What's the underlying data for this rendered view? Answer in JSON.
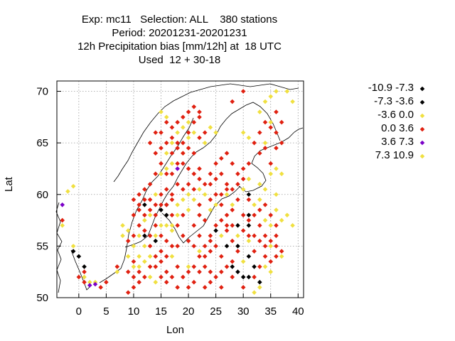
{
  "title_lines": [
    "Exp: mc11   Selection: ALL    380 stations",
    "Period: 20201231-20201231",
    "12h Precipitation bias [mm/12h] at  18 UTC",
    "Used  12 + 30-18"
  ],
  "chart_data": {
    "type": "scatter",
    "xlabel": "Lon",
    "ylabel": "Lat",
    "xlim": [
      -4,
      41
    ],
    "ylim": [
      50,
      71
    ],
    "xticks": [
      0,
      5,
      10,
      15,
      20,
      25,
      30,
      35,
      40
    ],
    "yticks": [
      50,
      55,
      60,
      65,
      70
    ],
    "grid": true,
    "legend_position": "right",
    "legend": [
      {
        "label": "-10.9 -7.3",
        "color": "#000000"
      },
      {
        "label": "-7.3 -3.6",
        "color": "#000000"
      },
      {
        "label": "-3.6 0.0",
        "color": "#f0e040"
      },
      {
        "label": "0.0 3.6",
        "color": "#e02010"
      },
      {
        "label": "3.6 7.3",
        "color": "#7b00c8"
      },
      {
        "label": "7.3 10.9",
        "color": "#f0e040"
      }
    ],
    "series": [
      {
        "color": "#000000",
        "points": [
          [
            12,
            59
          ],
          [
            12,
            56
          ],
          [
            14,
            55.5
          ],
          [
            16,
            58
          ],
          [
            16,
            59
          ],
          [
            15,
            58.5
          ],
          [
            31,
            60
          ],
          [
            31,
            58
          ],
          [
            29,
            57
          ],
          [
            27,
            55
          ],
          [
            29,
            55
          ],
          [
            31,
            54
          ],
          [
            28,
            53
          ],
          [
            29,
            52.5
          ],
          [
            30,
            52
          ],
          [
            31,
            52
          ],
          [
            32,
            53
          ],
          [
            33,
            51.5
          ],
          [
            -1,
            54.5
          ],
          [
            0,
            54
          ],
          [
            1,
            53
          ],
          [
            25,
            56.5
          ],
          [
            31,
            57
          ]
        ]
      },
      {
        "color": "#f0e040",
        "points": [
          [
            -2,
            60.3
          ],
          [
            -1,
            60.8
          ],
          [
            -3,
            57
          ],
          [
            -1,
            55
          ],
          [
            1,
            52
          ],
          [
            2,
            51.5
          ],
          [
            3,
            51.5
          ],
          [
            7,
            52.5
          ],
          [
            8,
            56
          ],
          [
            8,
            57
          ],
          [
            9,
            56.5
          ],
          [
            10,
            55
          ],
          [
            11,
            56
          ],
          [
            12,
            57.5
          ],
          [
            13,
            58
          ],
          [
            15,
            57
          ],
          [
            16,
            57
          ],
          [
            17,
            56.5
          ],
          [
            17,
            57
          ],
          [
            18,
            58
          ],
          [
            18,
            59
          ],
          [
            19,
            59.5
          ],
          [
            20,
            58.5
          ],
          [
            14,
            60
          ],
          [
            15,
            62
          ],
          [
            16,
            62.5
          ],
          [
            17,
            63
          ],
          [
            16,
            64
          ],
          [
            17,
            65
          ],
          [
            18,
            66
          ],
          [
            19,
            66.5
          ],
          [
            20,
            67
          ],
          [
            21,
            66
          ],
          [
            20,
            65.5
          ],
          [
            19,
            64
          ],
          [
            15,
            68
          ],
          [
            16,
            67.5
          ],
          [
            23,
            65
          ],
          [
            24,
            66.5
          ],
          [
            25,
            66
          ],
          [
            30,
            66
          ],
          [
            31,
            65.5
          ],
          [
            33,
            68
          ],
          [
            34,
            69
          ],
          [
            35,
            69.5
          ],
          [
            36,
            70
          ],
          [
            38,
            70
          ],
          [
            39,
            69
          ],
          [
            35,
            67
          ],
          [
            34,
            65
          ],
          [
            35,
            62
          ],
          [
            36,
            62.5
          ],
          [
            37,
            62
          ],
          [
            36,
            60
          ],
          [
            36,
            58.5
          ],
          [
            38,
            58
          ],
          [
            39,
            57
          ],
          [
            37,
            57.5
          ],
          [
            35,
            57
          ],
          [
            34,
            57.5
          ],
          [
            32,
            59
          ],
          [
            33,
            59.5
          ],
          [
            34,
            60.5
          ],
          [
            33,
            61
          ],
          [
            31,
            61.5
          ],
          [
            30,
            60.5
          ],
          [
            28,
            59
          ],
          [
            27,
            60
          ],
          [
            35,
            55
          ],
          [
            37,
            54
          ],
          [
            34,
            53
          ],
          [
            35,
            52.5
          ],
          [
            33,
            51
          ],
          [
            32,
            50.5
          ],
          [
            30,
            53.5
          ],
          [
            31,
            55.5
          ],
          [
            29,
            56
          ],
          [
            11,
            53
          ],
          [
            12,
            53.5
          ],
          [
            13,
            54
          ],
          [
            12,
            55
          ],
          [
            14,
            56
          ],
          [
            17,
            54
          ],
          [
            20,
            53
          ],
          [
            22,
            54.5
          ],
          [
            14,
            51.5
          ],
          [
            13,
            52
          ],
          [
            26,
            56
          ],
          [
            24,
            58.5
          ],
          [
            25,
            59
          ],
          [
            21,
            59.5
          ],
          [
            20,
            60
          ],
          [
            22,
            60.5
          ],
          [
            23,
            60
          ],
          [
            10,
            53
          ],
          [
            9,
            54
          ],
          [
            11,
            54
          ]
        ]
      },
      {
        "color": "#e02010",
        "points": [
          [
            -3,
            57.5
          ],
          [
            0,
            52
          ],
          [
            1,
            52.5
          ],
          [
            1,
            51.5
          ],
          [
            5,
            51.5
          ],
          [
            4,
            51
          ],
          [
            7,
            53
          ],
          [
            9,
            52.5
          ],
          [
            10,
            52
          ],
          [
            11,
            52.5
          ],
          [
            10,
            53.5
          ],
          [
            9,
            55.5
          ],
          [
            10,
            56
          ],
          [
            11,
            57
          ],
          [
            12,
            56.5
          ],
          [
            13,
            56
          ],
          [
            14,
            57
          ],
          [
            15,
            56
          ],
          [
            16,
            55.5
          ],
          [
            13,
            55
          ],
          [
            14,
            54
          ],
          [
            15,
            53.5
          ],
          [
            16,
            52.5
          ],
          [
            17,
            52
          ],
          [
            18,
            53
          ],
          [
            19,
            52
          ],
          [
            20,
            52.5
          ],
          [
            21,
            53
          ],
          [
            22,
            52.5
          ],
          [
            23,
            53
          ],
          [
            24,
            52.5
          ],
          [
            25,
            52
          ],
          [
            26,
            52.5
          ],
          [
            27,
            53
          ],
          [
            28,
            53.5
          ],
          [
            26,
            54
          ],
          [
            24,
            54.5
          ],
          [
            23,
            55
          ],
          [
            22,
            56
          ],
          [
            21,
            57
          ],
          [
            22,
            58
          ],
          [
            23,
            57.5
          ],
          [
            24,
            56
          ],
          [
            25,
            57
          ],
          [
            26,
            57.5
          ],
          [
            27,
            58
          ],
          [
            28,
            58.5
          ],
          [
            26,
            59
          ],
          [
            25,
            60
          ],
          [
            24,
            59.5
          ],
          [
            22,
            59
          ],
          [
            21,
            60.5
          ],
          [
            20,
            61
          ],
          [
            19,
            60.5
          ],
          [
            18,
            61
          ],
          [
            17,
            60
          ],
          [
            16,
            60.5
          ],
          [
            15,
            60
          ],
          [
            14,
            59
          ],
          [
            13,
            59.5
          ],
          [
            12,
            58
          ],
          [
            11,
            59
          ],
          [
            10,
            59.5
          ],
          [
            11,
            60
          ],
          [
            12,
            60.5
          ],
          [
            13,
            61
          ],
          [
            14,
            62
          ],
          [
            15,
            63
          ],
          [
            16,
            62
          ],
          [
            17,
            62
          ],
          [
            18,
            63
          ],
          [
            17,
            64
          ],
          [
            16,
            65
          ],
          [
            15,
            64.5
          ],
          [
            14,
            64
          ],
          [
            13,
            65
          ],
          [
            14,
            66
          ],
          [
            15,
            66
          ],
          [
            17,
            66.5
          ],
          [
            16,
            67
          ],
          [
            18,
            67
          ],
          [
            19,
            67.5
          ],
          [
            20,
            68
          ],
          [
            21,
            68.5
          ],
          [
            22,
            68
          ],
          [
            21,
            67
          ],
          [
            22,
            67.5
          ],
          [
            23,
            66
          ],
          [
            22,
            65.5
          ],
          [
            21,
            64
          ],
          [
            20,
            64.5
          ],
          [
            19,
            63
          ],
          [
            20,
            62.5
          ],
          [
            21,
            62
          ],
          [
            22,
            61.5
          ],
          [
            23,
            61
          ],
          [
            24,
            61
          ],
          [
            25,
            61.5
          ],
          [
            26,
            62
          ],
          [
            27,
            61
          ],
          [
            28,
            60.5
          ],
          [
            29,
            61
          ],
          [
            30,
            61.5
          ],
          [
            31,
            59.5
          ],
          [
            32,
            58
          ],
          [
            33,
            58.5
          ],
          [
            34,
            59
          ],
          [
            35,
            58
          ],
          [
            36,
            57
          ],
          [
            33,
            57
          ],
          [
            32,
            56
          ],
          [
            33,
            55.5
          ],
          [
            34,
            56
          ],
          [
            35,
            55.5
          ],
          [
            36,
            55
          ],
          [
            37,
            54.5
          ],
          [
            36,
            54
          ],
          [
            35,
            53.5
          ],
          [
            34,
            54
          ],
          [
            32,
            54.5
          ],
          [
            31,
            56
          ],
          [
            30,
            56.5
          ],
          [
            29,
            54.5
          ],
          [
            28,
            55.5
          ],
          [
            27,
            56.5
          ],
          [
            25,
            55
          ],
          [
            24,
            55.5
          ],
          [
            23,
            54
          ],
          [
            22,
            54
          ],
          [
            21,
            55
          ],
          [
            20,
            55.5
          ],
          [
            19,
            56
          ],
          [
            18,
            55
          ],
          [
            17,
            55
          ],
          [
            16,
            54
          ],
          [
            15,
            54.5
          ],
          [
            14,
            53
          ],
          [
            13,
            53
          ],
          [
            12,
            52
          ],
          [
            11,
            51.5
          ],
          [
            10,
            51
          ],
          [
            9,
            50.5
          ],
          [
            35,
            63
          ],
          [
            36,
            64.5
          ],
          [
            37,
            65
          ],
          [
            36,
            66
          ],
          [
            37,
            67
          ],
          [
            36,
            68
          ],
          [
            35,
            66.5
          ],
          [
            34,
            67
          ],
          [
            33,
            66
          ],
          [
            32,
            65
          ],
          [
            33,
            64
          ],
          [
            34,
            64.5
          ],
          [
            28,
            69
          ],
          [
            30,
            70
          ],
          [
            27,
            60.5
          ],
          [
            29,
            59.5
          ],
          [
            30,
            58
          ],
          [
            31,
            57.5
          ],
          [
            36,
            56
          ],
          [
            34,
            55
          ],
          [
            33,
            53
          ],
          [
            32,
            52
          ],
          [
            24,
            51.5
          ],
          [
            21,
            51.5
          ],
          [
            18,
            51
          ],
          [
            16,
            51.5
          ],
          [
            15,
            52
          ],
          [
            20,
            51
          ],
          [
            26,
            51
          ],
          [
            28,
            52
          ],
          [
            30,
            51
          ],
          [
            23,
            51
          ],
          [
            19,
            58
          ],
          [
            18,
            57
          ],
          [
            17,
            58
          ],
          [
            17,
            59.5
          ],
          [
            16,
            59
          ],
          [
            15,
            59
          ],
          [
            14,
            58
          ],
          [
            13,
            58.5
          ],
          [
            12,
            59.5
          ],
          [
            11,
            58.5
          ],
          [
            10,
            58
          ],
          [
            19,
            64
          ],
          [
            18,
            64.5
          ],
          [
            17,
            65.5
          ],
          [
            18,
            65
          ],
          [
            20,
            66
          ],
          [
            19,
            65
          ],
          [
            22,
            62.5
          ],
          [
            24,
            62
          ],
          [
            25,
            63
          ],
          [
            26,
            63.5
          ],
          [
            27,
            64
          ],
          [
            28,
            63
          ],
          [
            29,
            62
          ],
          [
            30,
            62.5
          ],
          [
            31,
            63
          ],
          [
            26,
            60
          ],
          [
            28,
            57
          ],
          [
            27,
            57
          ]
        ]
      },
      {
        "color": "#7b00c8",
        "points": [
          [
            -3,
            59
          ],
          [
            2,
            51.2
          ],
          [
            3,
            51.3
          ],
          [
            18,
            62.5
          ]
        ]
      }
    ]
  }
}
